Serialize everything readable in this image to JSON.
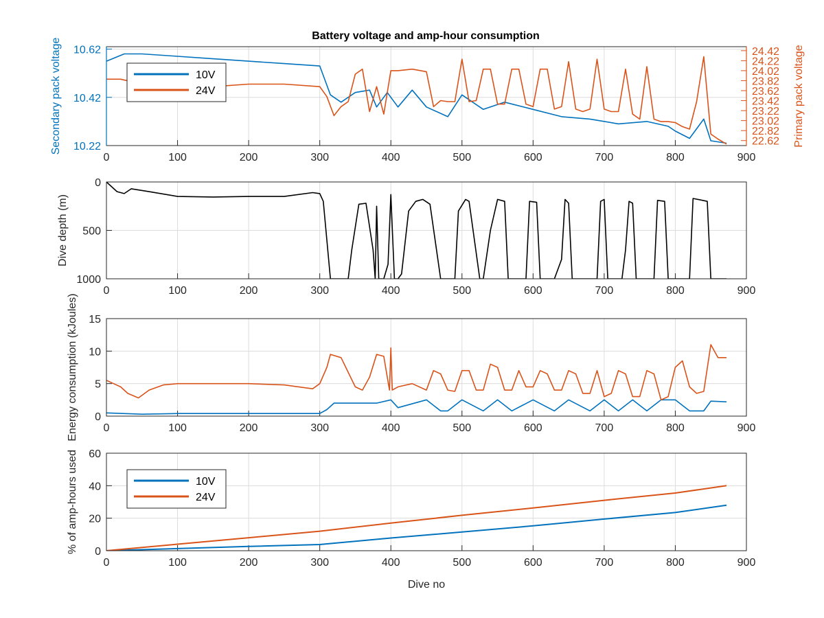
{
  "figure": {
    "title": "Battery voltage and amp-hour consumption"
  },
  "colors": {
    "v10": "#0072bd",
    "v24": "#d95319",
    "depth": "#000000",
    "axis": "#262626",
    "grid": "#dcdcdc"
  },
  "chart_data": [
    {
      "type": "line",
      "id": "voltage",
      "title": "Battery voltage and amp-hour consumption",
      "xlabel": "",
      "ylabel_left": "Secondary pack voltage",
      "ylabel_right": "Primary pack voltage",
      "xlim": [
        0,
        900
      ],
      "ylim_left": [
        10.22,
        10.63
      ],
      "ylim_right": [
        22.52,
        24.5
      ],
      "xticks": [
        0,
        100,
        200,
        300,
        400,
        500,
        600,
        700,
        800,
        900
      ],
      "yticks_left": [
        "10.22",
        "10.42",
        "10.62"
      ],
      "yticks_right": [
        "22.62",
        "22.82",
        "23.02",
        "23.22",
        "23.42",
        "23.62",
        "23.82",
        "24.02",
        "24.22",
        "24.42"
      ],
      "grid": true,
      "legend": [
        "10V",
        "24V"
      ],
      "legend_position": "top-left",
      "series": [
        {
          "name": "10V",
          "axis": "left",
          "x": [
            0,
            25,
            50,
            100,
            150,
            200,
            250,
            300,
            315,
            330,
            350,
            370,
            380,
            395,
            410,
            430,
            450,
            480,
            500,
            530,
            560,
            600,
            640,
            680,
            720,
            760,
            790,
            800,
            820,
            840,
            850,
            872
          ],
          "y": [
            10.57,
            10.6,
            10.6,
            10.59,
            10.58,
            10.57,
            10.56,
            10.55,
            10.43,
            10.4,
            10.44,
            10.45,
            10.38,
            10.44,
            10.38,
            10.45,
            10.38,
            10.34,
            10.43,
            10.37,
            10.4,
            10.37,
            10.34,
            10.33,
            10.31,
            10.32,
            10.3,
            10.28,
            10.25,
            10.33,
            10.24,
            10.23
          ]
        },
        {
          "name": "24V",
          "axis": "right",
          "x": [
            0,
            20,
            50,
            100,
            150,
            200,
            250,
            300,
            310,
            320,
            330,
            340,
            350,
            360,
            370,
            380,
            390,
            400,
            410,
            430,
            450,
            460,
            470,
            480,
            490,
            500,
            510,
            520,
            530,
            540,
            550,
            560,
            570,
            580,
            590,
            600,
            610,
            620,
            630,
            640,
            650,
            660,
            670,
            680,
            690,
            700,
            710,
            720,
            730,
            740,
            750,
            760,
            770,
            780,
            790,
            800,
            810,
            820,
            830,
            840,
            850,
            855,
            860,
            872
          ],
          "y": [
            23.85,
            23.85,
            23.75,
            23.72,
            23.7,
            23.75,
            23.75,
            23.7,
            23.5,
            23.12,
            23.3,
            23.4,
            23.95,
            24.05,
            23.2,
            23.7,
            23.15,
            24.02,
            24.02,
            24.05,
            24.0,
            23.3,
            23.42,
            23.4,
            23.4,
            24.25,
            23.4,
            23.42,
            24.05,
            24.05,
            23.35,
            23.35,
            24.05,
            24.05,
            23.35,
            23.3,
            24.05,
            24.05,
            23.25,
            23.3,
            24.2,
            23.25,
            23.2,
            23.25,
            24.25,
            23.25,
            23.2,
            23.2,
            24.05,
            23.15,
            23.05,
            24.1,
            23.05,
            23.0,
            23.0,
            22.98,
            22.9,
            22.85,
            23.4,
            24.3,
            22.75,
            22.7,
            22.65,
            22.55
          ]
        }
      ]
    },
    {
      "type": "line",
      "id": "depth",
      "xlabel": "",
      "ylabel": "Dive depth (m)",
      "xlim": [
        0,
        900
      ],
      "ylim": [
        1000,
        0
      ],
      "y_reversed": true,
      "xticks": [
        0,
        100,
        200,
        300,
        400,
        500,
        600,
        700,
        800,
        900
      ],
      "yticks": [
        0,
        500,
        1000
      ],
      "grid": true,
      "series": [
        {
          "name": "",
          "x": [
            0,
            15,
            25,
            35,
            60,
            100,
            150,
            200,
            250,
            290,
            300,
            305,
            315,
            320,
            340,
            345,
            355,
            365,
            375,
            378,
            380,
            383,
            390,
            396,
            400,
            405,
            410,
            415,
            425,
            435,
            445,
            455,
            470,
            480,
            490,
            495,
            505,
            510,
            525,
            530,
            540,
            550,
            560,
            565,
            580,
            590,
            595,
            605,
            610,
            615,
            630,
            640,
            645,
            650,
            655,
            665,
            680,
            690,
            695,
            700,
            705,
            715,
            725,
            730,
            735,
            740,
            745,
            755,
            765,
            770,
            775,
            785,
            790,
            795,
            805,
            815,
            820,
            825,
            845,
            850,
            855,
            865,
            872
          ],
          "y": [
            0,
            100,
            120,
            70,
            100,
            150,
            155,
            150,
            150,
            110,
            120,
            200,
            1000,
            1000,
            1000,
            700,
            230,
            220,
            700,
            1000,
            250,
            1000,
            1000,
            850,
            130,
            1000,
            1000,
            950,
            300,
            200,
            180,
            230,
            1000,
            1000,
            1000,
            300,
            180,
            200,
            1000,
            1000,
            500,
            180,
            200,
            1000,
            1000,
            1000,
            200,
            210,
            1000,
            1000,
            1000,
            800,
            180,
            220,
            1000,
            1000,
            1000,
            1000,
            200,
            180,
            1000,
            1000,
            1000,
            700,
            200,
            220,
            1000,
            1000,
            1000,
            1000,
            190,
            200,
            1000,
            1000,
            1000,
            1000,
            1000,
            170,
            200,
            1000,
            1000,
            1000,
            1000
          ]
        }
      ]
    },
    {
      "type": "line",
      "id": "energy",
      "xlabel": "",
      "ylabel": "Energy consumption (kJoules)",
      "xlim": [
        0,
        900
      ],
      "ylim": [
        0,
        15
      ],
      "xticks": [
        0,
        100,
        200,
        300,
        400,
        500,
        600,
        700,
        800,
        900
      ],
      "yticks": [
        0,
        5,
        10,
        15
      ],
      "grid": true,
      "series": [
        {
          "name": "10V",
          "x": [
            0,
            50,
            100,
            200,
            300,
            310,
            320,
            380,
            400,
            410,
            450,
            470,
            480,
            500,
            530,
            550,
            570,
            600,
            630,
            650,
            680,
            700,
            720,
            740,
            760,
            780,
            800,
            820,
            840,
            850,
            872
          ],
          "y": [
            0.5,
            0.3,
            0.4,
            0.4,
            0.4,
            1.0,
            2.0,
            2.0,
            2.5,
            1.3,
            2.5,
            0.8,
            0.8,
            2.5,
            0.8,
            2.5,
            0.8,
            2.5,
            0.8,
            2.5,
            0.8,
            2.5,
            0.8,
            2.5,
            0.8,
            2.5,
            2.5,
            0.8,
            0.8,
            2.3,
            2.2
          ]
        },
        {
          "name": "24V",
          "x": [
            0,
            10,
            20,
            30,
            45,
            60,
            80,
            100,
            150,
            200,
            250,
            290,
            300,
            310,
            315,
            330,
            350,
            360,
            370,
            380,
            390,
            398,
            400,
            402,
            410,
            430,
            450,
            460,
            470,
            480,
            490,
            500,
            510,
            520,
            530,
            540,
            550,
            560,
            570,
            580,
            590,
            600,
            610,
            620,
            630,
            640,
            650,
            660,
            670,
            680,
            690,
            700,
            710,
            720,
            730,
            740,
            750,
            760,
            770,
            780,
            790,
            800,
            810,
            820,
            830,
            840,
            850,
            860,
            872
          ],
          "y": [
            5.5,
            5.0,
            4.5,
            3.5,
            2.8,
            4.0,
            4.8,
            5.0,
            5.0,
            5.0,
            4.8,
            4.2,
            5.0,
            7.5,
            9.5,
            9.0,
            4.5,
            4.0,
            6.0,
            9.5,
            9.2,
            4.0,
            10.5,
            4.0,
            4.5,
            5.0,
            4.0,
            7.0,
            6.5,
            4.0,
            3.8,
            7.0,
            7.0,
            4.0,
            4.0,
            8.0,
            7.5,
            4.0,
            4.0,
            7.0,
            4.5,
            4.5,
            7.0,
            6.5,
            4.0,
            4.0,
            7.0,
            6.5,
            3.5,
            3.5,
            7.0,
            3.0,
            3.5,
            7.0,
            6.5,
            3.0,
            3.0,
            7.0,
            6.5,
            2.5,
            3.0,
            7.5,
            8.5,
            4.5,
            3.5,
            3.8,
            11.0,
            9.0,
            9.0
          ]
        }
      ]
    },
    {
      "type": "line",
      "id": "amphours",
      "xlabel": "Dive no",
      "ylabel": "% of amp-hours used",
      "xlim": [
        0,
        900
      ],
      "ylim": [
        0,
        60
      ],
      "xticks": [
        0,
        100,
        200,
        300,
        400,
        500,
        600,
        700,
        800,
        900
      ],
      "yticks": [
        0,
        20,
        40,
        60
      ],
      "grid": true,
      "legend": [
        "10V",
        "24V"
      ],
      "legend_position": "top-left",
      "series": [
        {
          "name": "10V",
          "x": [
            0,
            100,
            200,
            300,
            400,
            500,
            600,
            700,
            800,
            872
          ],
          "y": [
            0,
            1.3,
            2.6,
            3.8,
            7.8,
            11.5,
            15.3,
            19.5,
            23.5,
            28.0
          ]
        },
        {
          "name": "24V",
          "x": [
            0,
            100,
            200,
            300,
            400,
            500,
            600,
            700,
            800,
            872
          ],
          "y": [
            0,
            4.0,
            8.0,
            12.0,
            17.0,
            21.8,
            26.3,
            31.0,
            35.5,
            40.0
          ]
        }
      ]
    }
  ]
}
